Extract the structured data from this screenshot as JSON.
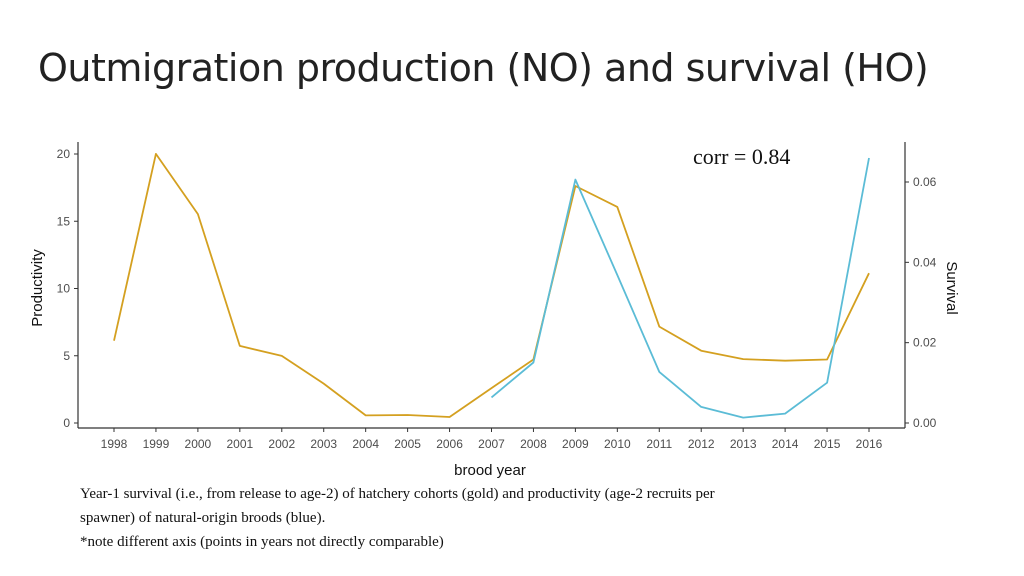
{
  "slide": {
    "title": "Outmigration production (NO) and survival (HO)"
  },
  "chart_data": {
    "type": "line",
    "x": [
      1998,
      1999,
      2000,
      2001,
      2002,
      2003,
      2004,
      2005,
      2006,
      2007,
      2008,
      2009,
      2010,
      2011,
      2012,
      2013,
      2014,
      2015,
      2016
    ],
    "xlabel": "brood year",
    "ylabel_left": "Productivity",
    "ylabel_right": "Survival",
    "ylim_left": [
      0,
      20
    ],
    "ylim_right": [
      0,
      0.06
    ],
    "yticks_left": [
      "0",
      "5",
      "10",
      "15",
      "20"
    ],
    "yticks_right": [
      "0.00",
      "0.02",
      "0.04",
      "0.06"
    ],
    "xticks": [
      "1998",
      "1999",
      "2000",
      "2001",
      "2002",
      "2003",
      "2004",
      "2005",
      "2006",
      "2007",
      "2008",
      "2009",
      "2010",
      "2011",
      "2012",
      "2013",
      "2014",
      "2015",
      "2016"
    ],
    "annotation": "corr = 0.84",
    "grid": false,
    "series": [
      {
        "axis": "right",
        "color": "#d4a020",
        "values": [
          0.0205,
          0.067,
          0.052,
          0.0192,
          0.0167,
          0.0098,
          0.0019,
          0.002,
          0.0015,
          0.0087,
          0.0158,
          0.059,
          0.0538,
          0.024,
          0.018,
          0.0159,
          0.0155,
          0.0158,
          0.0373
        ]
      },
      {
        "axis": "left",
        "color": "#5bbcd6",
        "values": [
          null,
          null,
          null,
          null,
          null,
          null,
          null,
          null,
          null,
          1.9,
          4.5,
          18.1,
          11.0,
          3.8,
          1.2,
          0.4,
          0.7,
          3.0,
          19.7
        ]
      }
    ]
  },
  "caption": {
    "line1": "Year-1 survival (i.e., from release to age-2) of hatchery cohorts (gold) and productivity (age-2 recruits per",
    "line2": "spawner) of natural-origin broods (blue).",
    "line3": "*note different axis (points in years not directly comparable)"
  }
}
